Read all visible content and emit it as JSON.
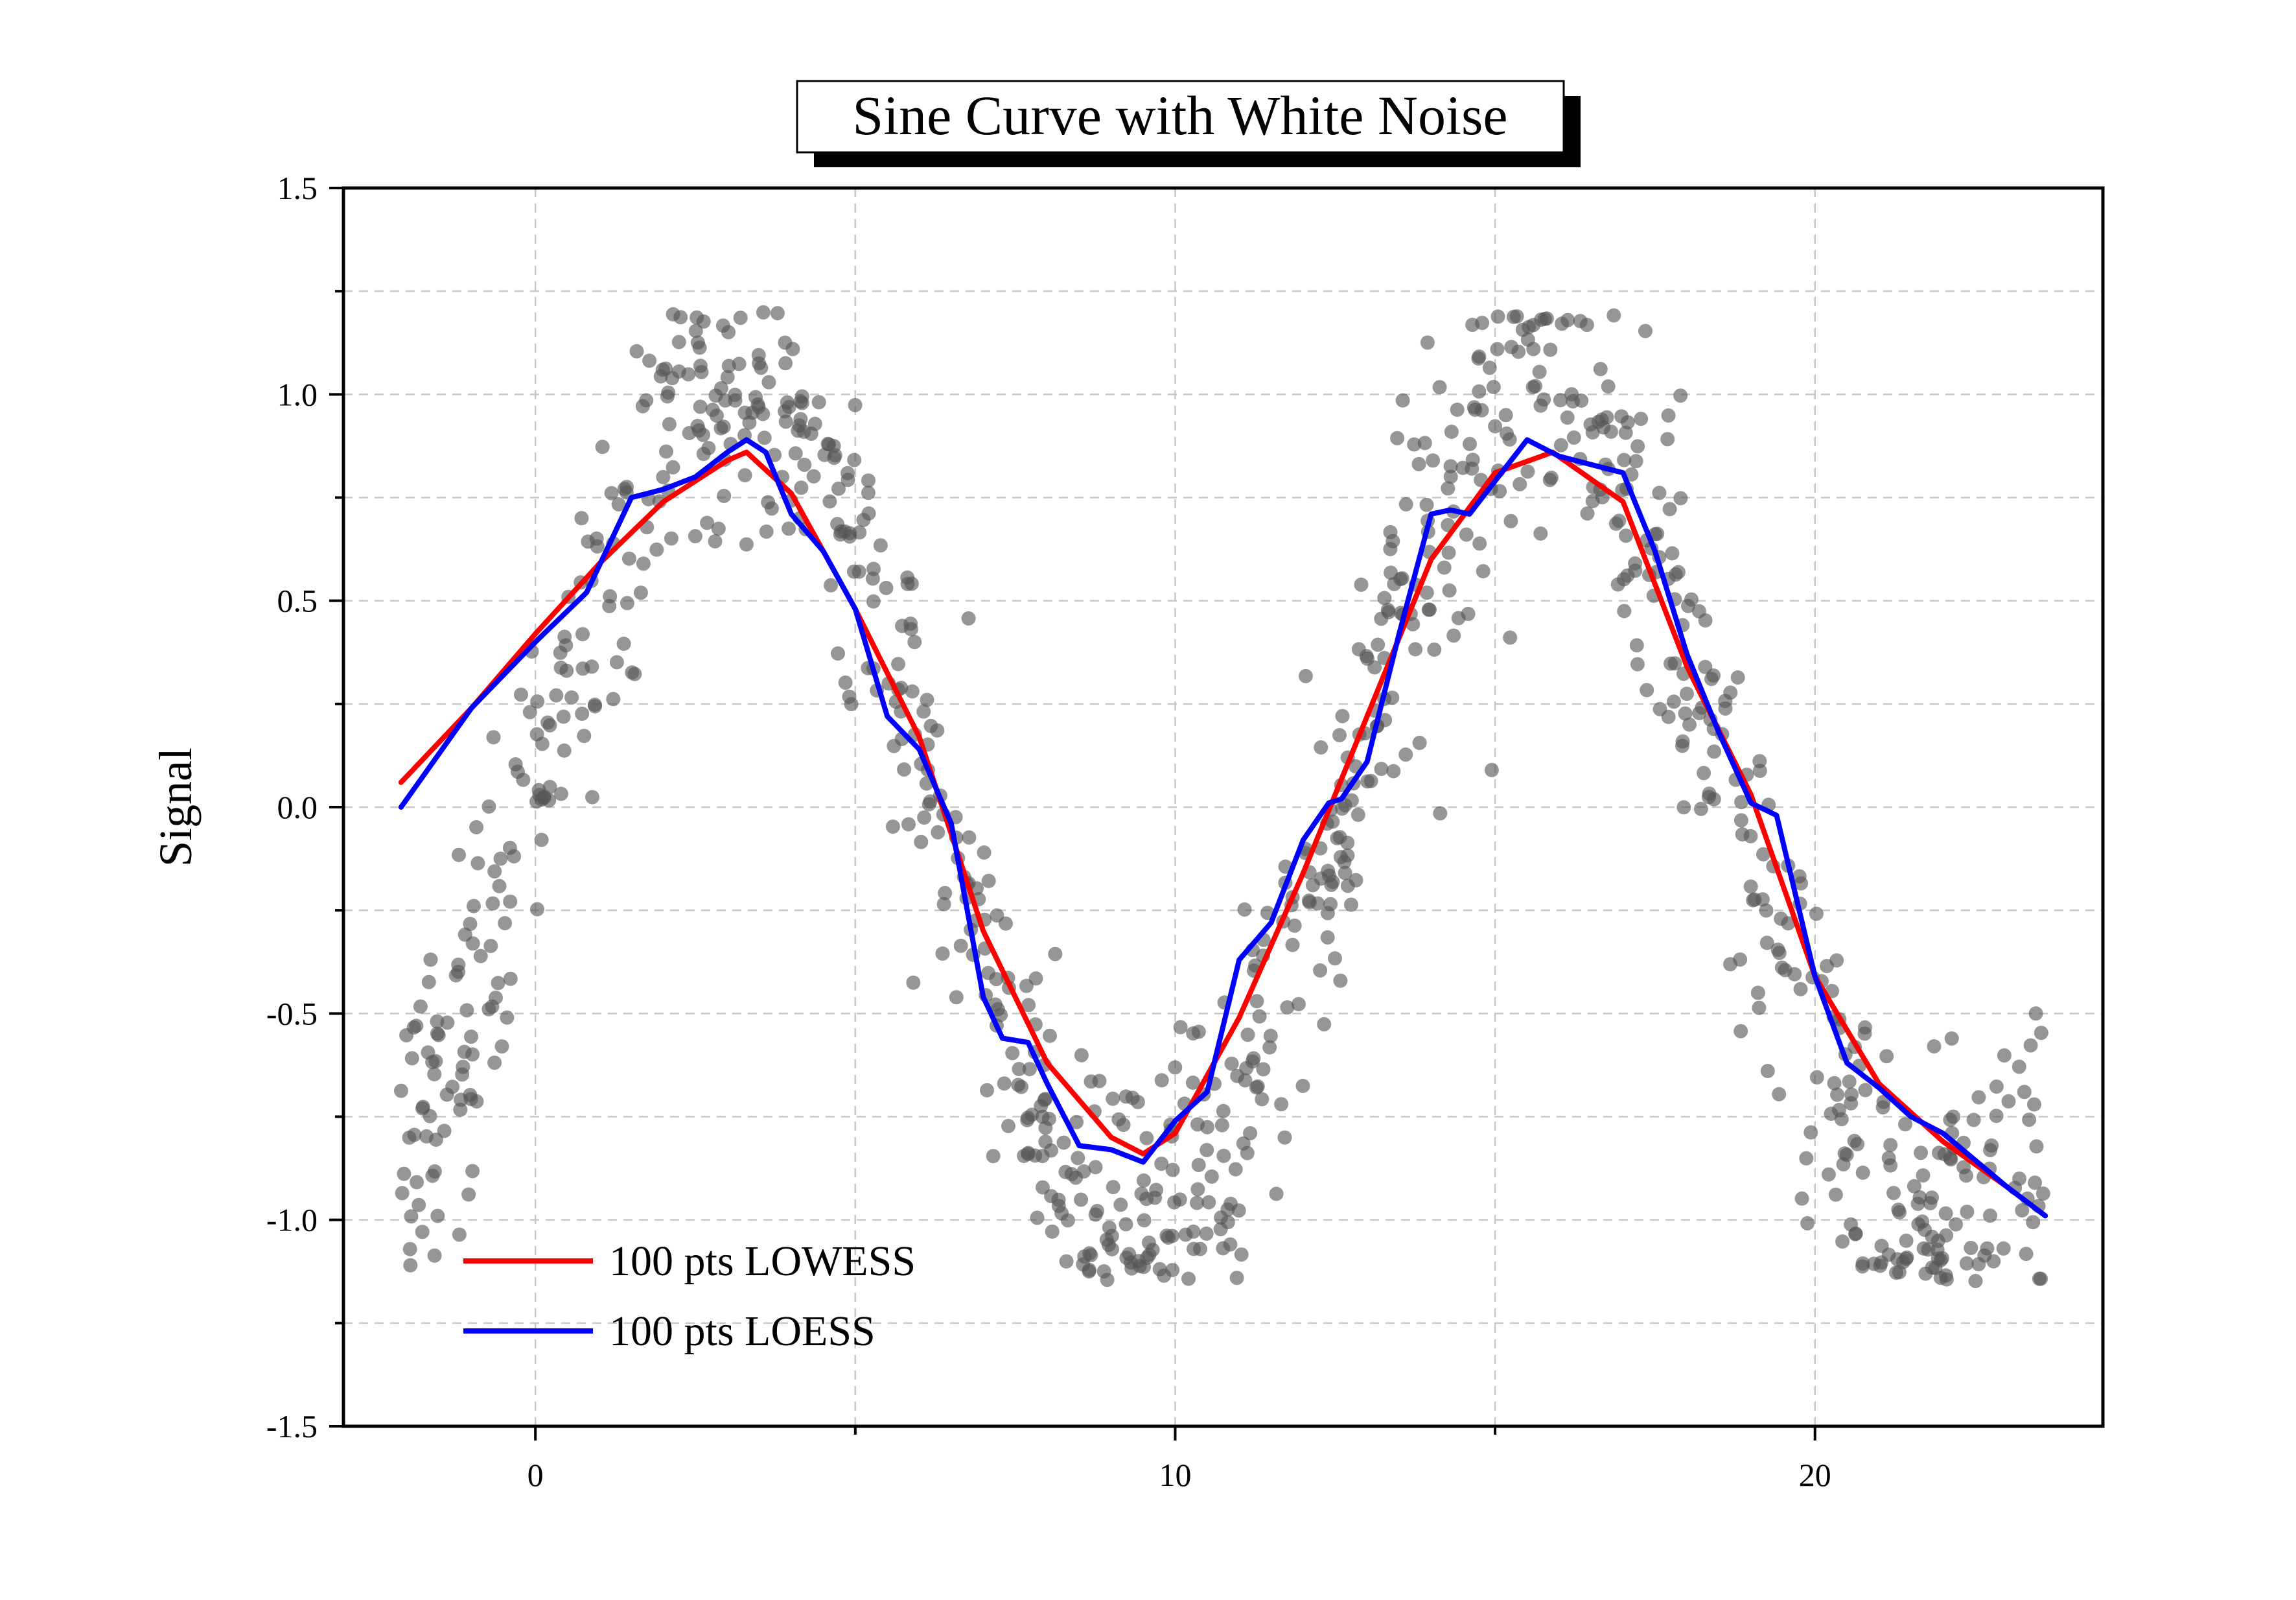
{
  "chart_data": {
    "type": "scatter",
    "title": "Sine Curve with White Noise",
    "xlabel": "",
    "ylabel": "Signal",
    "xlim": [
      -3,
      24.5
    ],
    "ylim": [
      -1.5,
      1.5
    ],
    "xticks": [
      0,
      10,
      20
    ],
    "xtick_labels": [
      "0",
      "10",
      "20"
    ],
    "yticks": [
      -1.5,
      -1.0,
      -0.5,
      0.0,
      0.5,
      1.0,
      1.5
    ],
    "ytick_labels": [
      "-1.5",
      "-1.0",
      "-0.5",
      "0.0",
      "0.5",
      "1.0",
      "1.5"
    ],
    "grid": true,
    "legend_position": "bottom-left",
    "scatter": {
      "color": "#555555",
      "note_points": "approx. sin(x/2) plus white noise, 1000 points from x=-2.1 to x=23.6",
      "x_start": -2.1,
      "x_end": 23.6,
      "count": 1000,
      "noise_sd": 0.2
    },
    "series": [
      {
        "name": "100 pts LOWESS",
        "color": "#ff0000",
        "x": [
          -2.1,
          -1.0,
          0.0,
          1.0,
          2.0,
          3.0,
          3.3,
          4.0,
          5.0,
          6.0,
          7.0,
          8.0,
          9.0,
          9.5,
          10.0,
          11.0,
          12.0,
          13.0,
          14.0,
          15.0,
          15.9,
          17.0,
          18.0,
          19.0,
          20.0,
          21.0,
          22.0,
          23.0,
          23.6
        ],
        "y": [
          0.06,
          0.24,
          0.42,
          0.59,
          0.74,
          0.84,
          0.86,
          0.76,
          0.48,
          0.17,
          -0.3,
          -0.62,
          -0.8,
          -0.84,
          -0.79,
          -0.51,
          -0.16,
          0.22,
          0.6,
          0.81,
          0.86,
          0.74,
          0.34,
          0.03,
          -0.41,
          -0.67,
          -0.81,
          -0.92,
          -0.99
        ]
      },
      {
        "name": "100 pts LOESS",
        "color": "#0000ff",
        "x": [
          -2.1,
          -1.0,
          0.0,
          0.8,
          1.5,
          2.0,
          2.5,
          3.0,
          3.3,
          3.6,
          4.0,
          4.5,
          5.0,
          5.5,
          6.0,
          6.5,
          7.0,
          7.3,
          7.7,
          8.0,
          8.5,
          9.0,
          9.5,
          10.0,
          10.5,
          11.0,
          11.5,
          12.0,
          12.4,
          12.6,
          13.0,
          13.5,
          14.0,
          14.3,
          14.6,
          15.0,
          15.5,
          16.0,
          16.5,
          17.0,
          17.5,
          18.0,
          18.5,
          19.0,
          19.4,
          20.0,
          20.5,
          21.0,
          21.5,
          22.0,
          23.0,
          23.6
        ],
        "y": [
          0.0,
          0.24,
          0.4,
          0.52,
          0.75,
          0.77,
          0.8,
          0.86,
          0.89,
          0.86,
          0.71,
          0.62,
          0.48,
          0.22,
          0.14,
          -0.04,
          -0.46,
          -0.56,
          -0.57,
          -0.67,
          -0.82,
          -0.83,
          -0.86,
          -0.76,
          -0.69,
          -0.37,
          -0.28,
          -0.08,
          0.01,
          0.02,
          0.11,
          0.42,
          0.71,
          0.72,
          0.71,
          0.79,
          0.89,
          0.85,
          0.83,
          0.81,
          0.62,
          0.37,
          0.18,
          0.01,
          -0.02,
          -0.41,
          -0.62,
          -0.68,
          -0.75,
          -0.79,
          -0.92,
          -0.99
        ]
      }
    ]
  }
}
